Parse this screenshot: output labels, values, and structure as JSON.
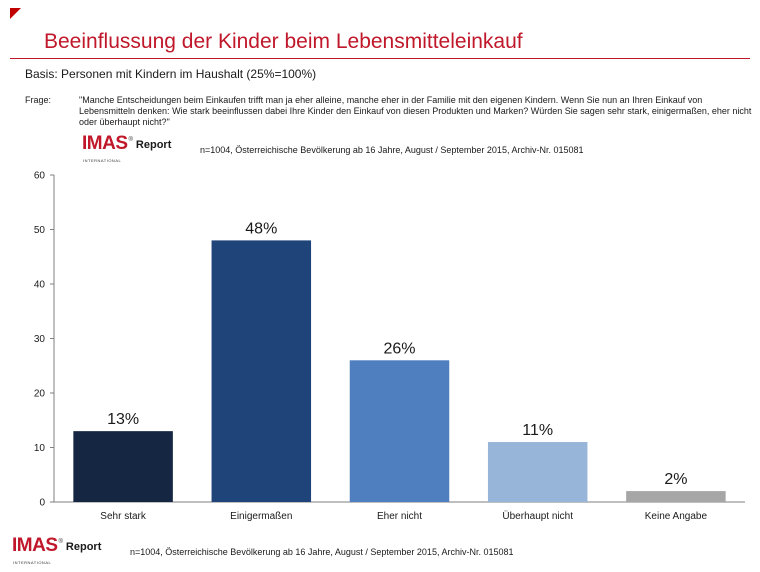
{
  "header": {
    "title": "Beeinflussung der Kinder beim Lebensmitteleinkauf",
    "basis": "Basis: Personen mit Kindern im Haushalt (25%=100%)",
    "frage_label": "Frage:",
    "frage_text": "\"Manche Entscheidungen beim Einkaufen trifft man ja eher alleine, manche eher in der Familie mit den eigenen Kindern. Wenn Sie nun an Ihren Einkauf von Lebensmitteln denken: Wie stark beeinflussen dabei Ihre Kinder den Einkauf von diesen Produkten und Marken? Würden Sie sagen sehr stark, einigermaßen, eher nicht oder überhaupt nicht?\""
  },
  "logo": {
    "name": "IMAS",
    "subtitle": "INTERNATIONAL",
    "report": "Report"
  },
  "sample_note": "n=1004, Österreichische Bevölkerung ab 16 Jahre, August / September 2015, Archiv-Nr. 015081",
  "colors": {
    "title": "#c0182a",
    "bars": [
      "#142641",
      "#1e4479",
      "#4f7fbe",
      "#97b5d9",
      "#a6a6a6"
    ]
  },
  "chart_data": {
    "type": "bar",
    "categories": [
      "Sehr stark",
      "Einigermaßen",
      "Eher nicht",
      "Überhaupt nicht",
      "Keine Angabe"
    ],
    "values": [
      13,
      48,
      26,
      11,
      2
    ],
    "data_labels": [
      "13%",
      "48%",
      "26%",
      "11%",
      "2%"
    ],
    "yticks": [
      0,
      10,
      20,
      30,
      40,
      50,
      60
    ],
    "ylim": [
      0,
      60
    ],
    "grid": false,
    "legend": "none"
  }
}
